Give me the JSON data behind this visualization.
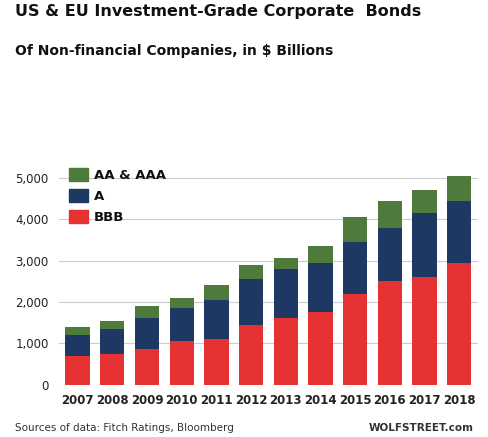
{
  "title_line1": "US & EU Investment-Grade Corporate  Bonds",
  "title_line2": "Of Non-financial Companies, in $ Billions",
  "years": [
    2007,
    2008,
    2009,
    2010,
    2011,
    2012,
    2013,
    2014,
    2015,
    2016,
    2017,
    2018
  ],
  "BBB": [
    700,
    750,
    850,
    1050,
    1100,
    1450,
    1600,
    1750,
    2200,
    2500,
    2600,
    2950
  ],
  "A": [
    500,
    600,
    750,
    800,
    950,
    1100,
    1200,
    1200,
    1250,
    1300,
    1550,
    1500
  ],
  "AA_AAA": [
    200,
    200,
    300,
    250,
    350,
    340,
    260,
    400,
    600,
    650,
    550,
    600
  ],
  "color_BBB": "#e63232",
  "color_A": "#1e3864",
  "color_AA_AAA": "#4e7a3c",
  "ylim": [
    0,
    5500
  ],
  "yticks": [
    0,
    1000,
    2000,
    3000,
    4000,
    5000
  ],
  "footer_left": "Sources of data: Fitch Ratings, Bloomberg",
  "footer_right": "WOLFSTREET.com",
  "background_color": "#ffffff",
  "grid_color": "#cccccc",
  "legend_labels": [
    "AA & AAA",
    "A",
    "BBB"
  ]
}
